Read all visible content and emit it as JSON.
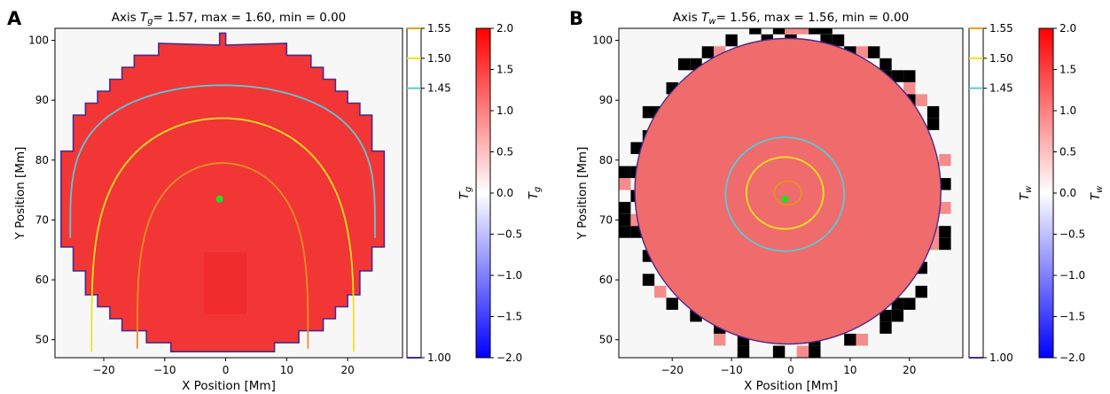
{
  "figure": {
    "panels": [
      {
        "label": "A",
        "title": {
          "pre": "Axis ",
          "var": "T",
          "sub": "g",
          "post": "= 1.57, max = 1.60, min = 0.00"
        },
        "xlabel": "X Position [Mm]",
        "ylabel": "Y Position [Mm]",
        "colorbar_label": {
          "var": "T",
          "sub": "g"
        }
      },
      {
        "label": "B",
        "title": {
          "pre": "Axis ",
          "var": "T",
          "sub": "w",
          "post": "= 1.56, max = 1.56, min = 0.00"
        },
        "xlabel": "X Position [Mm]",
        "ylabel": "Y Position [Mm]",
        "colorbar_label": {
          "var": "T",
          "sub": "w"
        }
      }
    ]
  },
  "chart_data": [
    {
      "type": "heatmap",
      "panel": "A",
      "title": "Axis T_g = 1.57, max = 1.60, min = 0.00",
      "xlabel": "X Position [Mm]",
      "ylabel": "Y Position [Mm]",
      "xlim": [
        -28,
        29
      ],
      "ylim": [
        47,
        102
      ],
      "xticks": [
        -20,
        -10,
        0,
        10,
        20
      ],
      "yticks": [
        50,
        60,
        70,
        80,
        90,
        100
      ],
      "grid": false,
      "disk": {
        "shape": "stepped-circle",
        "fill": "#f23636",
        "edge_color": "#4b2a8c",
        "background": "#f7f7f7"
      },
      "center_marker": {
        "x": -1,
        "y": 73.5,
        "color": "#22dd22"
      },
      "contours": [
        {
          "level": 1.45,
          "color": "#5bc8d8",
          "shape": "arch",
          "x_range": [
            -25,
            25
          ],
          "y_range": [
            67,
            92.5
          ]
        },
        {
          "level": 1.5,
          "color": "#f0e020",
          "shape": "arch",
          "x_range": [
            -21.5,
            21.5
          ],
          "y_range": [
            48,
            87
          ]
        },
        {
          "level": 1.53,
          "color": "#e89020",
          "shape": "arch",
          "x_range": [
            -14,
            14
          ],
          "y_range": [
            48.5,
            79.5
          ]
        }
      ],
      "contour_colorbar": {
        "ticks": [
          1.0,
          1.45,
          1.5,
          1.55
        ],
        "tick_labels": [
          "1.00",
          "1.45",
          "1.50",
          "1.55"
        ],
        "range": [
          1.0,
          1.55
        ]
      },
      "colorbar": {
        "ticks": [
          -2.0,
          -1.5,
          -1.0,
          -0.5,
          0.0,
          0.5,
          1.0,
          1.5,
          2.0
        ],
        "tick_labels": [
          "−2.0",
          "−1.5",
          "−1.0",
          "−0.5",
          "0.0",
          "0.5",
          "1.0",
          "1.5",
          "2.0"
        ],
        "range": [
          -2.0,
          2.0
        ],
        "cmap": "bwr"
      }
    },
    {
      "type": "heatmap",
      "panel": "B",
      "title": "Axis T_w = 1.56, max = 1.56, min = 0.00",
      "xlabel": "X Position [Mm]",
      "ylabel": "Y Position [Mm]",
      "xlim": [
        -29,
        29
      ],
      "ylim": [
        47,
        102
      ],
      "xticks": [
        -20,
        -10,
        0,
        10,
        20
      ],
      "yticks": [
        50,
        60,
        70,
        80,
        90,
        100
      ],
      "grid": false,
      "disk": {
        "shape": "circle",
        "fill": "#f06b6b",
        "edge_color": "#4b2a8c",
        "background": "#f7f7f7"
      },
      "center_marker": {
        "x": -1,
        "y": 73.5,
        "color": "#22dd22"
      },
      "contours": [
        {
          "level": 1.45,
          "color": "#5bc8d8",
          "shape": "ellipse",
          "cx": -1,
          "cy": 74.3,
          "rx": 10,
          "ry": 9.5
        },
        {
          "level": 1.5,
          "color": "#f0e020",
          "shape": "ellipse",
          "cx": -1,
          "cy": 74.5,
          "rx": 6.5,
          "ry": 6
        },
        {
          "level": 1.53,
          "color": "#e89020",
          "shape": "ellipse",
          "cx": -0.5,
          "cy": 74.5,
          "rx": 2.3,
          "ry": 2
        }
      ],
      "contour_colorbar": {
        "ticks": [
          1.0,
          1.45,
          1.5,
          1.55
        ],
        "tick_labels": [
          "1.00",
          "1.45",
          "1.50",
          "1.55"
        ],
        "range": [
          1.0,
          1.55
        ]
      },
      "colorbar": {
        "ticks": [
          -2.0,
          -1.5,
          -1.0,
          -0.5,
          0.0,
          0.5,
          1.0,
          1.5,
          2.0
        ],
        "tick_labels": [
          "−2.0",
          "−1.5",
          "−1.0",
          "−0.5",
          "0.0",
          "0.5",
          "1.0",
          "1.5",
          "2.0"
        ],
        "range": [
          -2.0,
          2.0
        ],
        "cmap": "bwr"
      }
    }
  ]
}
